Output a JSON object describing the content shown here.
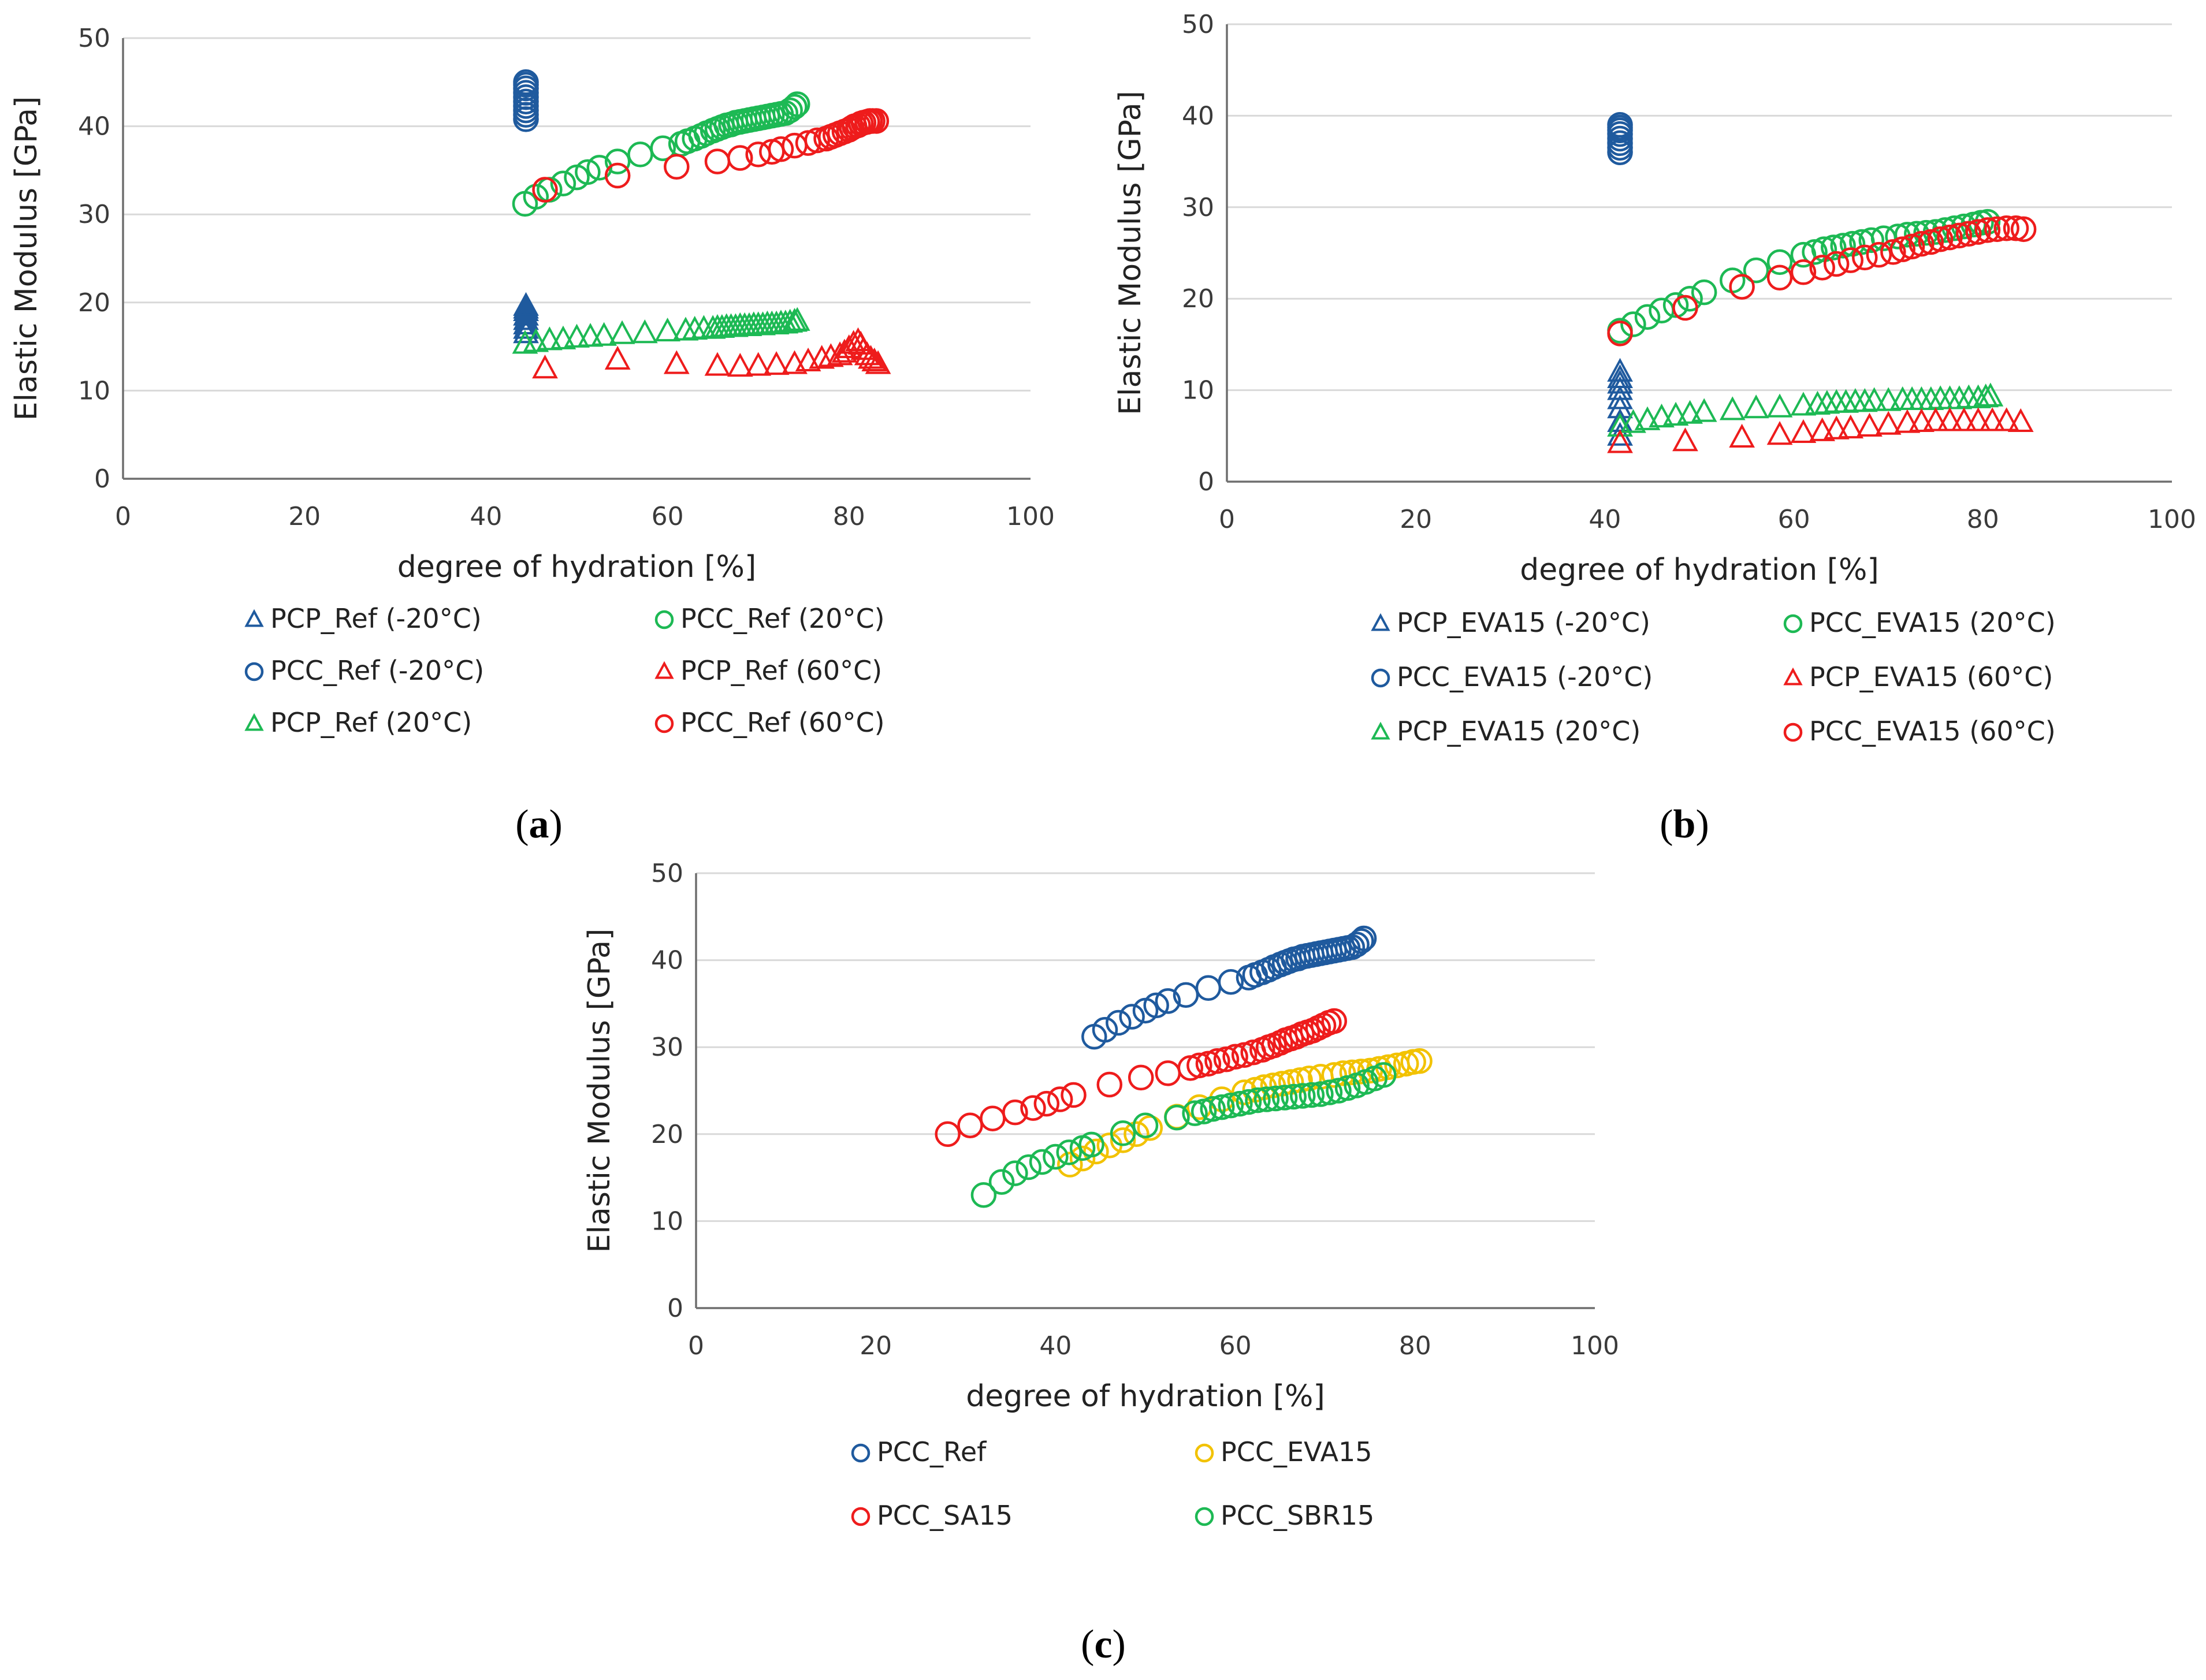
{
  "colors": {
    "blue": "#1f5a9e",
    "green": "#1db954",
    "red": "#ee1c1c",
    "yellow": "#f2c200",
    "grid": "#d9d9d9",
    "axis": "#6e6e6e"
  },
  "chart_data": [
    {
      "id": "a",
      "type": "scatter",
      "caption": "(a)",
      "title": "",
      "xlabel": "degree of hydration [%]",
      "ylabel": "Elastic Modulus [GPa]",
      "xlim": [
        0,
        100
      ],
      "ylim": [
        0,
        50
      ],
      "xticks": [
        "0",
        "20",
        "40",
        "60",
        "80",
        "100"
      ],
      "yticks": [
        "0",
        "10",
        "20",
        "30",
        "40",
        "50"
      ],
      "grid": true,
      "legend": "below",
      "series": [
        {
          "name": "PCP_Ref (-20°C)",
          "marker": "triangle",
          "color": "blue",
          "x": [
            44.4,
            44.4,
            44.4,
            44.4,
            44.4,
            44.4,
            44.4,
            44.4
          ],
          "y": [
            16.5,
            17,
            17.5,
            18,
            18.5,
            19,
            19.3,
            19.6
          ]
        },
        {
          "name": "PCC_Ref (-20°C)",
          "marker": "circle",
          "color": "blue",
          "x": [
            44.4,
            44.4,
            44.4,
            44.4,
            44.4,
            44.4,
            44.4,
            44.4,
            44.4,
            44.4
          ],
          "y": [
            40.8,
            41.3,
            41.8,
            42.3,
            42.8,
            43.3,
            43.8,
            44.3,
            44.7,
            45
          ]
        },
        {
          "name": "PCP_Ref (20°C)",
          "marker": "triangle",
          "color": "green",
          "x": [
            44.3,
            45.5,
            47,
            48.5,
            50,
            51.5,
            53,
            55,
            57.5,
            60,
            62,
            63,
            64,
            65,
            65.5,
            66,
            66.5,
            67,
            67.5,
            68,
            68.5,
            69,
            69.5,
            70,
            70.5,
            71,
            71.5,
            72,
            72.5,
            73,
            73.5,
            74,
            74.3
          ],
          "y": [
            15.3,
            15.5,
            15.7,
            15.8,
            16,
            16.1,
            16.2,
            16.4,
            16.5,
            16.7,
            16.8,
            16.9,
            17,
            17,
            17.1,
            17.1,
            17.2,
            17.2,
            17.2,
            17.3,
            17.3,
            17.3,
            17.4,
            17.4,
            17.4,
            17.5,
            17.5,
            17.5,
            17.6,
            17.6,
            17.7,
            17.8,
            17.9
          ]
        },
        {
          "name": "PCC_Ref (20°C)",
          "marker": "circle",
          "color": "green",
          "x": [
            44.3,
            45.5,
            47,
            48.5,
            50,
            51.2,
            52.5,
            54.5,
            57,
            59.5,
            61.5,
            62.2,
            63,
            63.7,
            64.3,
            65,
            65.5,
            66,
            66.5,
            67,
            67.5,
            68,
            68.5,
            69,
            69.5,
            70,
            70.5,
            71,
            71.5,
            72,
            72.5,
            73,
            73.5,
            74,
            74.3
          ],
          "y": [
            31.2,
            32,
            32.8,
            33.5,
            34.2,
            34.8,
            35.3,
            36,
            36.8,
            37.5,
            38,
            38.3,
            38.6,
            38.9,
            39.2,
            39.5,
            39.7,
            39.9,
            40.1,
            40.2,
            40.4,
            40.5,
            40.6,
            40.7,
            40.8,
            40.9,
            41,
            41.1,
            41.2,
            41.3,
            41.4,
            41.5,
            41.8,
            42.2,
            42.5
          ]
        },
        {
          "name": "PCP_Ref (60°C)",
          "marker": "triangle",
          "color": "red",
          "x": [
            46.5,
            54.5,
            61,
            65.5,
            68,
            70,
            72,
            74,
            75.5,
            77,
            78,
            79,
            79.5,
            80,
            80.5,
            81,
            81.3,
            81.6,
            82,
            82.4,
            82.8,
            83.2
          ],
          "y": [
            12.5,
            13.5,
            13,
            12.8,
            12.7,
            12.8,
            12.9,
            13,
            13.3,
            13.6,
            13.8,
            14,
            14.3,
            14.8,
            15.3,
            15.6,
            15.2,
            14.6,
            14,
            13.6,
            13.3,
            13
          ]
        },
        {
          "name": "PCC_Ref (60°C)",
          "marker": "circle",
          "color": "red",
          "x": [
            46.5,
            54.5,
            61,
            65.5,
            68,
            70,
            71.5,
            72.5,
            74,
            75.5,
            76.5,
            77.5,
            78,
            78.5,
            79,
            79.5,
            80,
            80.3,
            80.6,
            81,
            81.3,
            81.6,
            82,
            82.3,
            82.6,
            83
          ],
          "y": [
            32.8,
            34.4,
            35.4,
            36,
            36.4,
            36.8,
            37.1,
            37.4,
            37.8,
            38.1,
            38.4,
            38.6,
            38.8,
            39,
            39.2,
            39.4,
            39.6,
            39.8,
            40,
            40.1,
            40.3,
            40.4,
            40.5,
            40.6,
            40.6,
            40.6
          ]
        }
      ]
    },
    {
      "id": "b",
      "type": "scatter",
      "caption": "(b)",
      "title": "",
      "xlabel": "degree of hydration [%]",
      "ylabel": "Elastic Modulus [GPa]",
      "xlim": [
        0,
        100
      ],
      "ylim": [
        0,
        50
      ],
      "xticks": [
        "0",
        "20",
        "40",
        "60",
        "80",
        "100"
      ],
      "yticks": [
        "0",
        "10",
        "20",
        "30",
        "40",
        "50"
      ],
      "grid": true,
      "legend": "below",
      "series": [
        {
          "name": "PCP_EVA15 (-20°C)",
          "marker": "triangle",
          "color": "blue",
          "x": [
            41.6,
            41.6,
            41.6,
            41.6,
            41.6,
            41.6,
            41.6,
            41.6
          ],
          "y": [
            5,
            6.5,
            8,
            9,
            10,
            10.7,
            11.3,
            12
          ]
        },
        {
          "name": "PCC_EVA15 (-20°C)",
          "marker": "circle",
          "color": "blue",
          "x": [
            41.6,
            41.6,
            41.6,
            41.6,
            41.6,
            41.6,
            41.6,
            41.6
          ],
          "y": [
            36,
            36.5,
            37,
            37.5,
            38,
            38.4,
            38.7,
            39
          ]
        },
        {
          "name": "PCP_EVA15 (20°C)",
          "marker": "triangle",
          "color": "green",
          "x": [
            41.6,
            43,
            44.5,
            46,
            47.5,
            49,
            50.5,
            53.5,
            56,
            58.5,
            61,
            62.5,
            63.5,
            64.5,
            65.5,
            66.5,
            67.5,
            68.5,
            70,
            71.5,
            72.5,
            73.5,
            74.5,
            75.5,
            76.5,
            77.5,
            78.5,
            79.5,
            80.3,
            80.8
          ],
          "y": [
            6,
            6.4,
            6.7,
            7,
            7.2,
            7.4,
            7.6,
            7.8,
            8,
            8.1,
            8.3,
            8.4,
            8.5,
            8.6,
            8.6,
            8.7,
            8.7,
            8.8,
            8.8,
            8.9,
            8.9,
            8.9,
            8.9,
            9,
            9,
            9,
            9.1,
            9.1,
            9.2,
            9.3
          ]
        },
        {
          "name": "PCC_EVA15 (20°C)",
          "marker": "circle",
          "color": "green",
          "x": [
            41.6,
            43,
            44.5,
            46,
            47.5,
            49,
            50.5,
            53.5,
            56,
            58.5,
            61,
            62.2,
            63.2,
            64.2,
            65.2,
            66.2,
            67.2,
            68.2,
            69.5,
            71,
            72,
            73,
            74,
            75,
            76,
            77,
            78,
            79,
            79.8,
            80.5
          ],
          "y": [
            16.5,
            17.2,
            18,
            18.7,
            19.3,
            20,
            20.7,
            22,
            23.1,
            24,
            24.8,
            25.1,
            25.4,
            25.6,
            25.8,
            26,
            26.2,
            26.4,
            26.6,
            26.8,
            27,
            27.1,
            27.2,
            27.3,
            27.5,
            27.7,
            27.9,
            28.1,
            28.3,
            28.4
          ]
        },
        {
          "name": "PCP_EVA15 (60°C)",
          "marker": "triangle",
          "color": "red",
          "x": [
            41.6,
            48.5,
            54.5,
            58.5,
            61,
            63,
            64.5,
            66,
            68,
            70,
            72,
            73.5,
            75,
            76.5,
            78,
            79.5,
            81,
            82.5,
            84
          ],
          "y": [
            4.2,
            4.4,
            4.8,
            5.1,
            5.3,
            5.5,
            5.7,
            5.8,
            6,
            6.2,
            6.4,
            6.5,
            6.6,
            6.6,
            6.6,
            6.6,
            6.6,
            6.6,
            6.5
          ]
        },
        {
          "name": "PCC_EVA15 (60°C)",
          "marker": "circle",
          "color": "red",
          "x": [
            41.6,
            48.5,
            54.5,
            58.5,
            61,
            63,
            64.5,
            66,
            67.5,
            69,
            70.5,
            71.5,
            72.5,
            73.5,
            74.5,
            75.5,
            76.5,
            77.5,
            78.5,
            79.5,
            80.5,
            81.5,
            82.5,
            83.5,
            84.3
          ],
          "y": [
            16.2,
            19,
            21.3,
            22.3,
            22.9,
            23.4,
            23.8,
            24.2,
            24.5,
            24.8,
            25.1,
            25.4,
            25.7,
            26,
            26.2,
            26.5,
            26.7,
            26.9,
            27.1,
            27.3,
            27.5,
            27.6,
            27.7,
            27.7,
            27.6
          ]
        }
      ]
    },
    {
      "id": "c",
      "type": "scatter",
      "caption": "(c)",
      "title": "",
      "xlabel": "degree of hydration [%]",
      "ylabel": "Elastic Modulus [GPa]",
      "xlim": [
        0,
        100
      ],
      "ylim": [
        0,
        50
      ],
      "xticks": [
        "0",
        "20",
        "40",
        "60",
        "80",
        "100"
      ],
      "yticks": [
        "0",
        "10",
        "20",
        "30",
        "40",
        "50"
      ],
      "grid": true,
      "legend": "below",
      "series": [
        {
          "name": "PCC_Ref",
          "marker": "circle",
          "color": "blue",
          "x": [
            44.3,
            45.5,
            47,
            48.5,
            50,
            51.2,
            52.5,
            54.5,
            57,
            59.5,
            61.5,
            62.2,
            63,
            63.7,
            64.3,
            65,
            65.5,
            66,
            66.5,
            67,
            67.5,
            68,
            68.5,
            69,
            69.5,
            70,
            70.5,
            71,
            71.5,
            72,
            72.5,
            73,
            73.5,
            74,
            74.3
          ],
          "y": [
            31.2,
            32,
            32.8,
            33.5,
            34.2,
            34.8,
            35.3,
            36,
            36.8,
            37.5,
            38,
            38.3,
            38.6,
            38.9,
            39.2,
            39.5,
            39.7,
            39.9,
            40.1,
            40.2,
            40.4,
            40.5,
            40.6,
            40.7,
            40.8,
            40.9,
            41,
            41.1,
            41.2,
            41.3,
            41.4,
            41.5,
            41.8,
            42.2,
            42.5
          ]
        },
        {
          "name": "PCC_SA15",
          "marker": "circle",
          "color": "red",
          "x": [
            28,
            30.5,
            33,
            35.5,
            37.5,
            39,
            40.5,
            42,
            46,
            49.5,
            52.5,
            55,
            56,
            57,
            58,
            59,
            60,
            61,
            62,
            63,
            63.7,
            64.3,
            65,
            65.6,
            66.2,
            66.8,
            67.4,
            68,
            68.6,
            69.2,
            69.8,
            70.4,
            71
          ],
          "y": [
            20,
            21,
            21.8,
            22.5,
            23,
            23.5,
            24,
            24.5,
            25.7,
            26.5,
            27,
            27.6,
            27.9,
            28.1,
            28.4,
            28.6,
            28.9,
            29.1,
            29.4,
            29.7,
            30,
            30.2,
            30.5,
            30.8,
            31,
            31.2,
            31.5,
            31.7,
            31.9,
            32.2,
            32.5,
            32.8,
            33
          ]
        },
        {
          "name": "PCC_EVA15",
          "marker": "circle",
          "color": "yellow",
          "x": [
            41.6,
            43,
            44.5,
            46,
            47.5,
            49,
            50.5,
            53.5,
            56,
            58.5,
            61,
            62.2,
            63.2,
            64.2,
            65.2,
            66.2,
            67.2,
            68.2,
            69.5,
            71,
            72,
            73,
            74,
            75,
            76,
            77,
            78,
            79,
            79.8,
            80.5
          ],
          "y": [
            16.5,
            17.2,
            18,
            18.7,
            19.3,
            20,
            20.7,
            22,
            23.1,
            24,
            24.8,
            25.1,
            25.4,
            25.6,
            25.8,
            26,
            26.2,
            26.4,
            26.6,
            26.8,
            27,
            27.1,
            27.2,
            27.3,
            27.5,
            27.7,
            27.9,
            28.1,
            28.3,
            28.4
          ]
        },
        {
          "name": "PCC_SBR15",
          "marker": "circle",
          "color": "green",
          "x": [
            32,
            34,
            35.5,
            37,
            38.5,
            40,
            41.5,
            43,
            44,
            47.5,
            50,
            53.5,
            55.5,
            56.5,
            57.5,
            58.5,
            59.5,
            60.5,
            61.5,
            62.5,
            63.5,
            64.5,
            65.5,
            66.5,
            67.5,
            68.5,
            69.5,
            70.5,
            71.5,
            72.5,
            73.5,
            74.5,
            75.5,
            76.5
          ],
          "y": [
            13,
            14.5,
            15.5,
            16.2,
            16.8,
            17.4,
            17.9,
            18.4,
            18.8,
            20.1,
            21,
            21.9,
            22.4,
            22.6,
            22.9,
            23.1,
            23.3,
            23.5,
            23.7,
            23.9,
            24,
            24.1,
            24.2,
            24.3,
            24.4,
            24.5,
            24.6,
            24.8,
            25,
            25.3,
            25.6,
            26,
            26.4,
            26.8
          ]
        }
      ]
    }
  ]
}
